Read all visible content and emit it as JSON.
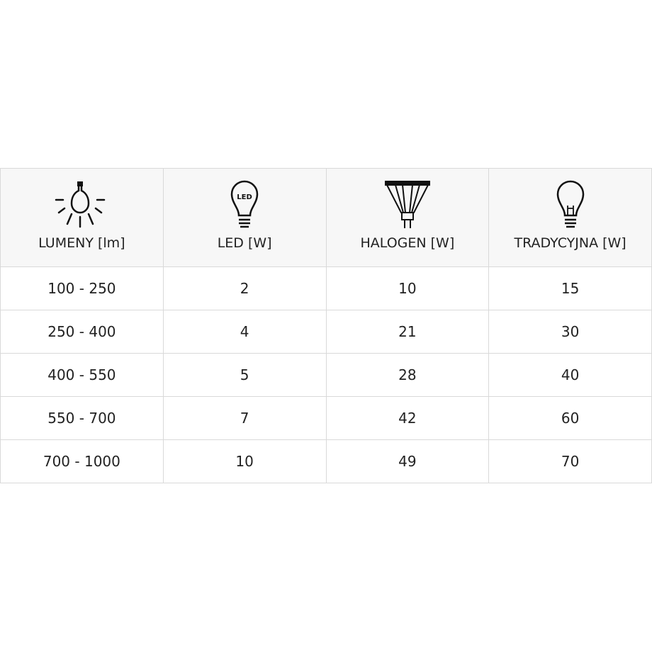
{
  "table": {
    "headers": [
      {
        "label": "LUMENY [lm]",
        "icon": "light-rays-bulb-icon"
      },
      {
        "label": "LED [W]",
        "icon": "led-bulb-icon",
        "icon_text": "LED"
      },
      {
        "label": "HALOGEN [W]",
        "icon": "halogen-spot-icon"
      },
      {
        "label": "TRADYCYJNA [W]",
        "icon": "incandescent-bulb-icon"
      }
    ],
    "rows": [
      [
        "100 - 250",
        "2",
        "10",
        "15"
      ],
      [
        "250 - 400",
        "4",
        "21",
        "30"
      ],
      [
        "400 - 550",
        "5",
        "28",
        "40"
      ],
      [
        "550 - 700",
        "7",
        "42",
        "60"
      ],
      [
        "700 - 1000",
        "10",
        "49",
        "70"
      ]
    ]
  }
}
